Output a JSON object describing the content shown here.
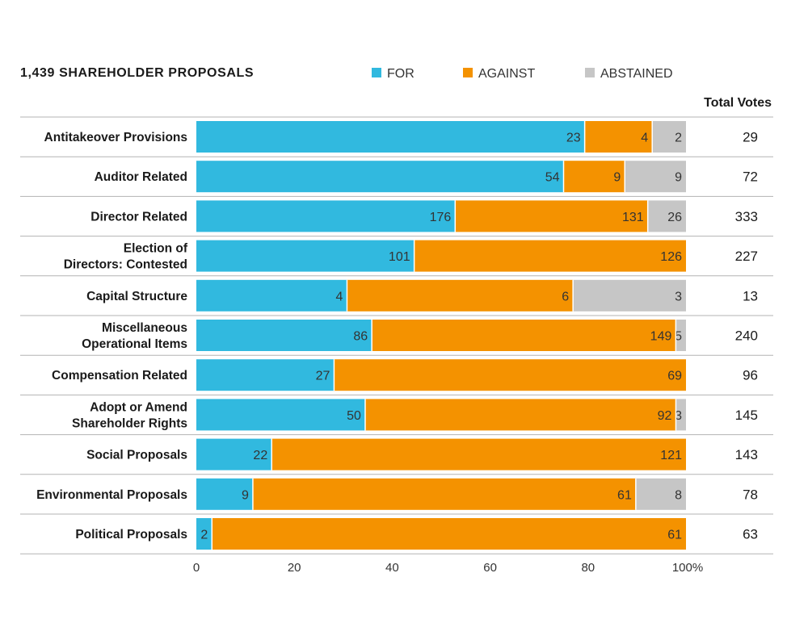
{
  "chart_data": {
    "type": "bar",
    "orientation": "horizontal",
    "stacked": "percent",
    "title": "1,439 SHAREHOLDER PROPOSALS",
    "total_header": "Total Votes",
    "categories": [
      [
        "Antitakeover Provisions"
      ],
      [
        "Auditor Related"
      ],
      [
        "Director Related"
      ],
      [
        "Election of",
        "Directors: Contested"
      ],
      [
        "Capital Structure"
      ],
      [
        "Miscellaneous",
        "Operational Items"
      ],
      [
        "Compensation Related"
      ],
      [
        "Adopt or Amend",
        "Shareholder Rights"
      ],
      [
        "Social Proposals"
      ],
      [
        "Environmental Proposals"
      ],
      [
        "Political Proposals"
      ]
    ],
    "series": [
      {
        "name": "FOR",
        "color": "#31b9df",
        "values": [
          23,
          54,
          176,
          101,
          4,
          86,
          27,
          50,
          22,
          9,
          2
        ]
      },
      {
        "name": "AGAINST",
        "color": "#f49200",
        "values": [
          4,
          9,
          131,
          126,
          6,
          149,
          69,
          92,
          121,
          61,
          61
        ]
      },
      {
        "name": "ABSTAINED",
        "color": "#c6c6c6",
        "values": [
          2,
          9,
          26,
          0,
          3,
          5,
          0,
          3,
          0,
          8,
          0
        ]
      }
    ],
    "totals": [
      29,
      72,
      333,
      227,
      13,
      240,
      96,
      145,
      143,
      78,
      63
    ],
    "x_ticks": [
      "0",
      "20",
      "40",
      "60",
      "80",
      "100%"
    ],
    "xlim": [
      0,
      100
    ],
    "legend_position": "top",
    "grid": false
  }
}
